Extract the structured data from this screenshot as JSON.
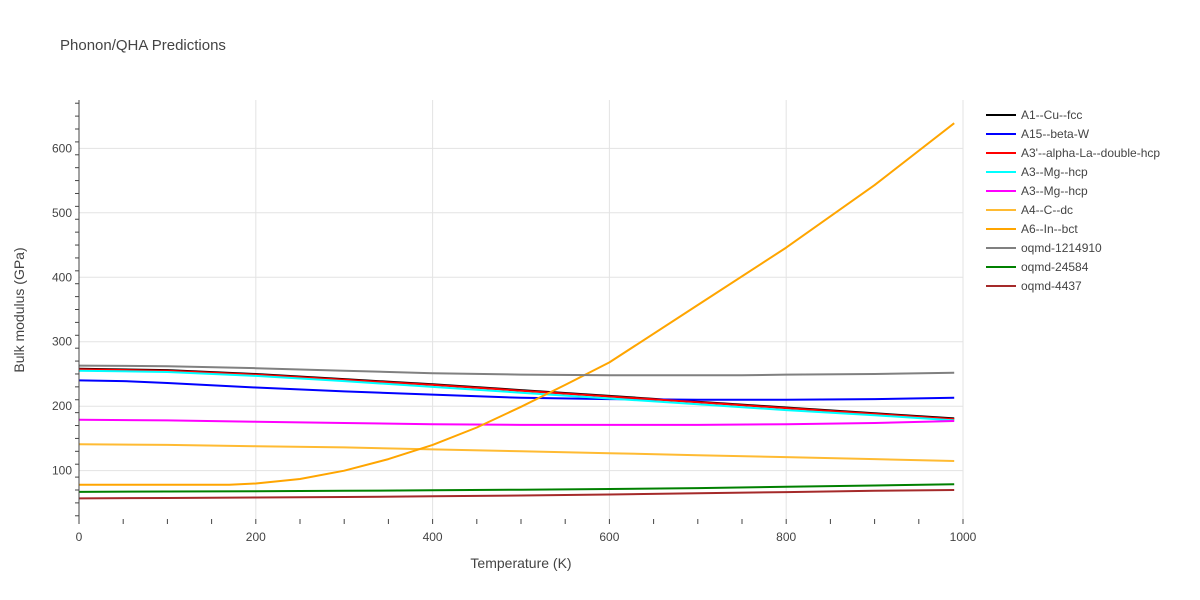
{
  "chart_data": {
    "type": "line",
    "title": "Phonon/QHA Predictions",
    "xlabel": "Temperature (K)",
    "ylabel": "Bulk modulus (GPa)",
    "xlim": [
      0,
      1000
    ],
    "ylim": [
      25,
      675
    ],
    "xticks": [
      0,
      200,
      400,
      600,
      800,
      1000
    ],
    "yticks": [
      100,
      200,
      300,
      400,
      500,
      600
    ],
    "grid": true,
    "legend_position": "right",
    "series": [
      {
        "name": "A1--Cu--fcc",
        "color": "#000000",
        "x": [
          0,
          100,
          200,
          300,
          400,
          500,
          600,
          700,
          800,
          900,
          990
        ],
        "y": [
          258,
          256,
          250,
          242,
          234,
          225,
          216,
          207,
          198,
          189,
          181
        ]
      },
      {
        "name": "A15--beta-W",
        "color": "#0000ff",
        "x": [
          0,
          50,
          100,
          200,
          300,
          400,
          500,
          600,
          700,
          800,
          900,
          990
        ],
        "y": [
          240,
          239,
          236,
          229,
          223,
          218,
          213,
          211,
          210,
          210,
          211,
          213
        ]
      },
      {
        "name": "A3'--alpha-La--double-hcp",
        "color": "#ff0000",
        "x": [
          0,
          100,
          200,
          300,
          400,
          500,
          600,
          700,
          800,
          900,
          990
        ],
        "y": [
          257,
          255,
          249,
          241,
          233,
          224,
          215,
          206,
          197,
          188,
          180
        ]
      },
      {
        "name": "A3--Mg--hcp",
        "color": "#00ffff",
        "x": [
          0,
          100,
          200,
          300,
          400,
          500,
          600,
          700,
          800,
          900,
          990
        ],
        "y": [
          255,
          253,
          247,
          239,
          230,
          221,
          212,
          203,
          194,
          186,
          178
        ]
      },
      {
        "name": "A3--Mg--hcp",
        "color": "#ff00ff",
        "x": [
          0,
          100,
          200,
          300,
          400,
          500,
          600,
          700,
          800,
          900,
          990
        ],
        "y": [
          179,
          178,
          176,
          174,
          172,
          171,
          171,
          171,
          172,
          174,
          177
        ]
      },
      {
        "name": "A4--C--dc",
        "color": "#ffbb33",
        "x": [
          0,
          100,
          200,
          300,
          400,
          500,
          600,
          700,
          800,
          900,
          990
        ],
        "y": [
          141,
          140,
          138,
          136,
          133,
          130,
          127,
          124,
          121,
          118,
          115
        ]
      },
      {
        "name": "A6--In--bct",
        "color": "#ffa500",
        "x": [
          0,
          100,
          170,
          200,
          250,
          300,
          350,
          400,
          450,
          500,
          550,
          600,
          700,
          800,
          900,
          990
        ],
        "y": [
          78,
          78,
          78,
          80,
          87,
          100,
          118,
          140,
          167,
          199,
          233,
          268,
          357,
          446,
          543,
          639
        ]
      },
      {
        "name": "oqmd-1214910",
        "color": "#808080",
        "x": [
          0,
          100,
          200,
          300,
          400,
          500,
          600,
          700,
          750,
          800,
          900,
          990
        ],
        "y": [
          263,
          262,
          259,
          255,
          251,
          249,
          248,
          248,
          248,
          249,
          250,
          252
        ]
      },
      {
        "name": "oqmd-24584",
        "color": "#008000",
        "x": [
          0,
          100,
          200,
          300,
          400,
          500,
          600,
          700,
          800,
          900,
          990
        ],
        "y": [
          67,
          67.6,
          68.2,
          68.8,
          69.6,
          70.5,
          71.6,
          73,
          75,
          77,
          79
        ]
      },
      {
        "name": "oqmd-4437",
        "color": "#a52a2a",
        "x": [
          0,
          100,
          200,
          300,
          400,
          500,
          600,
          700,
          800,
          900,
          990
        ],
        "y": [
          57,
          57.6,
          58.3,
          59.1,
          60.2,
          61.5,
          63,
          64.8,
          66.7,
          68.7,
          70
        ]
      }
    ]
  }
}
